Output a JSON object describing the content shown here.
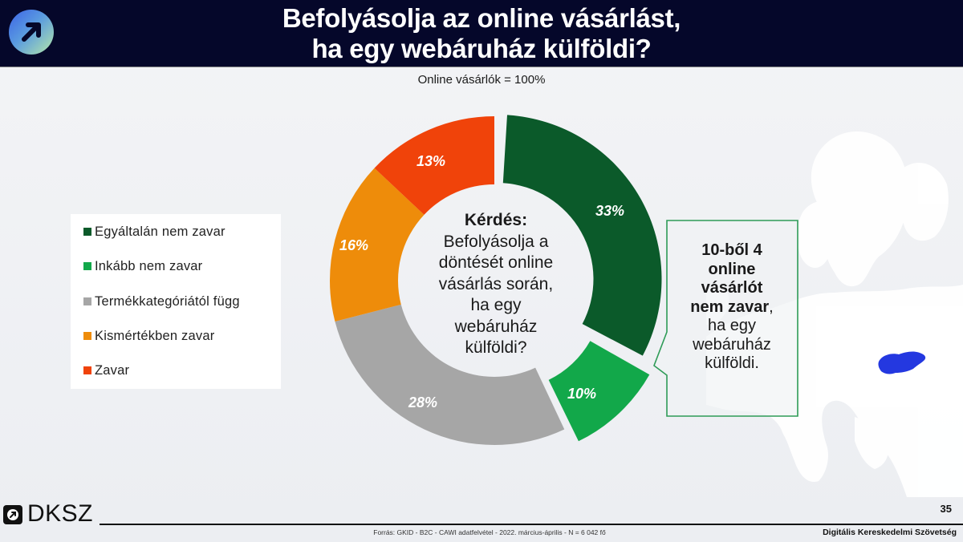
{
  "header": {
    "title_line1": "Befolyásolja az online vásárlást,",
    "title_line2": "ha egy webáruház külföldi?",
    "logo_icon": "arrow-up-right-icon"
  },
  "subtitle": "Online vásárlók = 100%",
  "legend": {
    "items": [
      {
        "label": "Egyáltalán nem zavar",
        "color": "#0b5a2a"
      },
      {
        "label": "Inkább nem zavar",
        "color": "#12a84a"
      },
      {
        "label": "Termékkategóriától függ",
        "color": "#a6a6a6"
      },
      {
        "label": "Kismértékben zavar",
        "color": "#ee8c0a"
      },
      {
        "label": "Zavar",
        "color": "#f0430a"
      }
    ]
  },
  "center": {
    "question_label": "Kérdés:",
    "question_line1": "Befolyásolja a",
    "question_line2": "döntését online",
    "question_line3": "vásárlás során,",
    "question_line4": "ha egy",
    "question_line5": "webáruház",
    "question_line6": "külföldi?"
  },
  "callout": {
    "bold1": "10-ből 4",
    "bold2": "online",
    "bold3": "vásárlót",
    "bold4": "nem zavar",
    "comma": ",",
    "line5": "ha egy",
    "line6": "webáruház",
    "line7": "külföldi.",
    "border_color": "#2e9b57"
  },
  "map": {
    "highlight_country": "Hungary",
    "highlight_color": "#2438e0"
  },
  "footer": {
    "brand": "DKSZ",
    "page_number": "35",
    "source": "Forrás: GKID - B2C - CAWI adatfelvétel - 2022. március-április - N = 6 042 fő",
    "organization": "Digitális Kereskedelmi Szövetség"
  },
  "chart_data": {
    "type": "pie",
    "subtype": "donut",
    "title": "Befolyásolja az online vásárlást, ha egy webáruház külföldi?",
    "subtitle": "Online vásárlók = 100%",
    "categories": [
      "Egyáltalán nem zavar",
      "Inkább nem zavar",
      "Termékkategóriától függ",
      "Kismértékben zavar",
      "Zavar"
    ],
    "values": [
      33,
      10,
      28,
      16,
      13
    ],
    "labels": [
      "33%",
      "10%",
      "28%",
      "16%",
      "13%"
    ],
    "colors": [
      "#0b5a2a",
      "#12a84a",
      "#a6a6a6",
      "#ee8c0a",
      "#f0430a"
    ],
    "exploded": [
      "Egyáltalán nem zavar",
      "Inkább nem zavar"
    ],
    "start_angle": "12 o'clock, clockwise",
    "legend_position": "left",
    "center_annotation": "Kérdés: Befolyásolja a döntését online vásárlás során, ha egy webáruház külföldi?",
    "callout_annotation": "10-ből 4 online vásárlót nem zavar, ha egy webáruház külföldi."
  }
}
